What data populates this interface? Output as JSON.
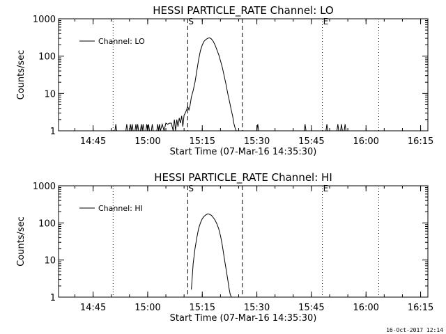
{
  "chart_data": [
    {
      "type": "line",
      "title": "HESSI PARTICLE_RATE Channel: LO",
      "xlabel": "Start Time (07-Mar-16 14:35:30)",
      "ylabel": "Counts/sec",
      "y_scale": "log",
      "ylim": [
        1,
        1000
      ],
      "y_tick_labels": [
        "1",
        "10",
        "100",
        "1000"
      ],
      "x_tick_labels": [
        "14:45",
        "15:00",
        "15:15",
        "15:30",
        "15:45",
        "16:00",
        "16:15"
      ],
      "xlim": [
        "14:35:30",
        "16:17:00"
      ],
      "legend": {
        "position": "top-left",
        "entries": [
          "Channel: LO"
        ]
      },
      "vertical_markers": [
        {
          "time": "14:50:30",
          "style": "dotted",
          "label": ""
        },
        {
          "time": "15:11:00",
          "style": "dashed",
          "label": "S"
        },
        {
          "time": "15:26:00",
          "style": "dashed",
          "label": ""
        },
        {
          "time": "15:48:00",
          "style": "dotted",
          "label": "E"
        },
        {
          "time": "16:03:30",
          "style": "dotted",
          "label": ""
        }
      ],
      "series": [
        {
          "name": "Channel: LO",
          "points": [
            [
              "14:51:00",
              1
            ],
            [
              "14:51:15",
              1.5
            ],
            [
              "14:51:30",
              1
            ],
            [
              "14:54:00",
              1
            ],
            [
              "14:54:15",
              1.5
            ],
            [
              "14:54:30",
              1
            ],
            [
              "14:55:00",
              1
            ],
            [
              "14:55:15",
              1.5
            ],
            [
              "14:55:30",
              1
            ],
            [
              "14:55:45",
              1.5
            ],
            [
              "14:56:00",
              1
            ],
            [
              "14:56:30",
              1
            ],
            [
              "14:56:45",
              1.5
            ],
            [
              "14:57:00",
              1
            ],
            [
              "14:57:15",
              1.5
            ],
            [
              "14:57:30",
              1
            ],
            [
              "14:58:00",
              1
            ],
            [
              "14:58:15",
              1.5
            ],
            [
              "14:58:30",
              1
            ],
            [
              "14:58:45",
              1.5
            ],
            [
              "14:59:00",
              1
            ],
            [
              "14:59:30",
              1
            ],
            [
              "14:59:45",
              1.5
            ],
            [
              "15:00:00",
              1
            ],
            [
              "15:00:15",
              1.5
            ],
            [
              "15:00:30",
              1
            ],
            [
              "15:01:00",
              1
            ],
            [
              "15:01:15",
              1.5
            ],
            [
              "15:01:30",
              1
            ],
            [
              "15:02:30",
              1
            ],
            [
              "15:02:45",
              1.5
            ],
            [
              "15:03:00",
              1
            ],
            [
              "15:03:15",
              1.5
            ],
            [
              "15:03:30",
              1
            ],
            [
              "15:04:00",
              1.5
            ],
            [
              "15:04:30",
              1
            ],
            [
              "15:05:00",
              1.6
            ],
            [
              "15:05:30",
              1.5
            ],
            [
              "15:06:00",
              1.6
            ],
            [
              "15:06:30",
              1.6
            ],
            [
              "15:07:00",
              1
            ],
            [
              "15:07:20",
              2
            ],
            [
              "15:07:40",
              1
            ],
            [
              "15:08:00",
              2
            ],
            [
              "15:08:20",
              1.3
            ],
            [
              "15:08:40",
              2.2
            ],
            [
              "15:09:00",
              1.6
            ],
            [
              "15:09:20",
              2.5
            ],
            [
              "15:09:40",
              1.3
            ],
            [
              "15:10:00",
              2.6
            ],
            [
              "15:10:20",
              3
            ],
            [
              "15:10:40",
              3.6
            ],
            [
              "15:11:00",
              4.5
            ],
            [
              "15:11:20",
              3.6
            ],
            [
              "15:11:40",
              5
            ],
            [
              "15:12:00",
              8
            ],
            [
              "15:12:30",
              12
            ],
            [
              "15:13:00",
              20
            ],
            [
              "15:13:30",
              40
            ],
            [
              "15:14:00",
              80
            ],
            [
              "15:14:30",
              140
            ],
            [
              "15:15:00",
              200
            ],
            [
              "15:15:30",
              250
            ],
            [
              "15:16:00",
              280
            ],
            [
              "15:16:30",
              300
            ],
            [
              "15:17:00",
              310
            ],
            [
              "15:17:30",
              290
            ],
            [
              "15:18:00",
              250
            ],
            [
              "15:18:30",
              200
            ],
            [
              "15:19:00",
              150
            ],
            [
              "15:19:30",
              110
            ],
            [
              "15:20:00",
              75
            ],
            [
              "15:20:30",
              50
            ],
            [
              "15:21:00",
              30
            ],
            [
              "15:21:30",
              18
            ],
            [
              "15:22:00",
              10
            ],
            [
              "15:22:30",
              6
            ],
            [
              "15:23:00",
              3.5
            ],
            [
              "15:23:20",
              2.5
            ],
            [
              "15:23:40",
              1.6
            ],
            [
              "15:24:00",
              1.2
            ],
            [
              "15:24:20",
              1
            ],
            [
              "15:30:00",
              1
            ],
            [
              "15:30:15",
              1.5
            ],
            [
              "15:30:30",
              1
            ],
            [
              "15:43:00",
              1
            ],
            [
              "15:43:15",
              1.5
            ],
            [
              "15:43:30",
              1
            ],
            [
              "15:49:00",
              1
            ],
            [
              "15:49:15",
              1.5
            ],
            [
              "15:49:30",
              1
            ],
            [
              "15:52:00",
              1
            ],
            [
              "15:52:15",
              1.5
            ],
            [
              "15:52:30",
              1
            ],
            [
              "15:53:00",
              1
            ],
            [
              "15:53:15",
              1.5
            ],
            [
              "15:53:30",
              1
            ],
            [
              "15:54:00",
              1
            ],
            [
              "15:54:15",
              1.5
            ],
            [
              "15:54:30",
              1
            ]
          ]
        }
      ]
    },
    {
      "type": "line",
      "title": "HESSI PARTICLE_RATE Channel: HI",
      "xlabel": "Start Time (07-Mar-16 14:35:30)",
      "ylabel": "Counts/sec",
      "y_scale": "log",
      "ylim": [
        1,
        1000
      ],
      "y_tick_labels": [
        "1",
        "10",
        "100",
        "1000"
      ],
      "x_tick_labels": [
        "14:45",
        "15:00",
        "15:15",
        "15:30",
        "15:45",
        "16:00",
        "16:15"
      ],
      "xlim": [
        "14:35:30",
        "16:17:00"
      ],
      "legend": {
        "position": "top-left",
        "entries": [
          "Channel: HI"
        ]
      },
      "vertical_markers": [
        {
          "time": "14:50:30",
          "style": "dotted",
          "label": ""
        },
        {
          "time": "15:11:00",
          "style": "dashed",
          "label": "S"
        },
        {
          "time": "15:26:00",
          "style": "dashed",
          "label": ""
        },
        {
          "time": "15:48:00",
          "style": "dotted",
          "label": "E"
        },
        {
          "time": "16:03:30",
          "style": "dotted",
          "label": ""
        }
      ],
      "series": [
        {
          "name": "Channel: HI",
          "points": [
            [
              "15:12:00",
              1.6
            ],
            [
              "15:12:30",
              8
            ],
            [
              "15:13:00",
              20
            ],
            [
              "15:13:30",
              40
            ],
            [
              "15:14:00",
              70
            ],
            [
              "15:14:30",
              100
            ],
            [
              "15:15:00",
              130
            ],
            [
              "15:15:30",
              150
            ],
            [
              "15:16:00",
              165
            ],
            [
              "15:16:30",
              175
            ],
            [
              "15:17:00",
              170
            ],
            [
              "15:17:30",
              160
            ],
            [
              "15:18:00",
              140
            ],
            [
              "15:18:30",
              120
            ],
            [
              "15:19:00",
              95
            ],
            [
              "15:19:30",
              70
            ],
            [
              "15:20:00",
              45
            ],
            [
              "15:20:30",
              25
            ],
            [
              "15:21:00",
              12
            ],
            [
              "15:21:30",
              6
            ],
            [
              "15:22:00",
              3
            ],
            [
              "15:22:20",
              1.8
            ],
            [
              "15:22:40",
              1.2
            ],
            [
              "15:23:00",
              1
            ]
          ]
        }
      ]
    }
  ],
  "footer": {
    "timestamp": "16-Oct-2017 12:14"
  }
}
